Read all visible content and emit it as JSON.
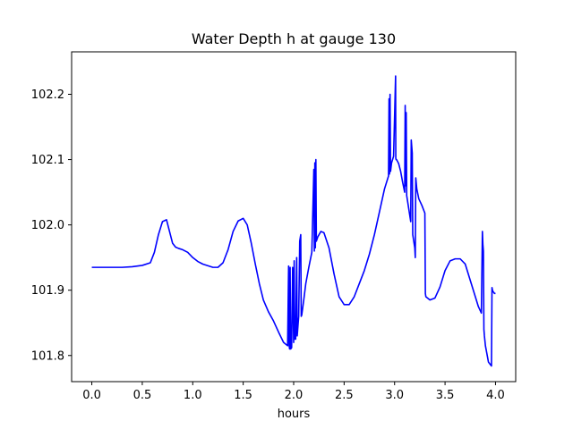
{
  "chart_data": {
    "type": "line",
    "title": "Water Depth h at gauge 130",
    "xlabel": "hours",
    "ylabel": "",
    "xlim": [
      -0.2,
      4.2
    ],
    "ylim": [
      101.76,
      102.265
    ],
    "xticks": [
      0.0,
      0.5,
      1.0,
      1.5,
      2.0,
      2.5,
      3.0,
      3.5,
      4.0
    ],
    "xtick_labels": [
      "0.0",
      "0.5",
      "1.0",
      "1.5",
      "2.0",
      "2.5",
      "3.0",
      "3.5",
      "4.0"
    ],
    "yticks": [
      101.8,
      101.9,
      102.0,
      102.1,
      102.2
    ],
    "ytick_labels": [
      "101.8",
      "101.9",
      "102.0",
      "102.1",
      "102.2"
    ],
    "grid": false,
    "color": "#0000ff",
    "series": [
      {
        "x": [
          0.0,
          0.1,
          0.2,
          0.3,
          0.4,
          0.5,
          0.58,
          0.62,
          0.66,
          0.7,
          0.74,
          0.77,
          0.8,
          0.83,
          0.86,
          0.9,
          0.95,
          1.0,
          1.05,
          1.1,
          1.2,
          1.25,
          1.3,
          1.35,
          1.4,
          1.45,
          1.5,
          1.54,
          1.58,
          1.62,
          1.66,
          1.7,
          1.75,
          1.8,
          1.85,
          1.9,
          1.94,
          1.95,
          1.955,
          1.96,
          1.965,
          1.97,
          1.98,
          1.99,
          2.0,
          2.005,
          2.01,
          2.02,
          2.03,
          2.035,
          2.04,
          2.05,
          2.06,
          2.07,
          2.075,
          2.08,
          2.1,
          2.12,
          2.15,
          2.18,
          2.2,
          2.205,
          2.21,
          2.215,
          2.22,
          2.225,
          2.24,
          2.27,
          2.3,
          2.35,
          2.4,
          2.45,
          2.5,
          2.55,
          2.6,
          2.65,
          2.7,
          2.75,
          2.8,
          2.85,
          2.9,
          2.94,
          2.945,
          2.95,
          2.955,
          2.96,
          2.97,
          2.99,
          3.01,
          3.012,
          3.015,
          3.02,
          3.04,
          3.06,
          3.08,
          3.1,
          3.105,
          3.11,
          3.115,
          3.12,
          3.14,
          3.16,
          3.165,
          3.17,
          3.175,
          3.18,
          3.185,
          3.2,
          3.205,
          3.21,
          3.22,
          3.24,
          3.27,
          3.3,
          3.305,
          3.31,
          3.35,
          3.4,
          3.45,
          3.5,
          3.55,
          3.6,
          3.65,
          3.7,
          3.75,
          3.8,
          3.83,
          3.86,
          3.87,
          3.875,
          3.88,
          3.885,
          3.89,
          3.9,
          3.93,
          3.96,
          3.965,
          3.97,
          3.975,
          3.98,
          3.99,
          4.0
        ],
        "values": [
          101.935,
          101.935,
          101.935,
          101.935,
          101.936,
          101.938,
          101.942,
          101.958,
          101.985,
          102.005,
          102.008,
          101.99,
          101.972,
          101.966,
          101.964,
          101.962,
          101.958,
          101.95,
          101.944,
          101.94,
          101.935,
          101.935,
          101.942,
          101.962,
          101.99,
          102.006,
          102.01,
          102.0,
          101.972,
          101.94,
          101.91,
          101.885,
          101.867,
          101.853,
          101.836,
          101.82,
          101.815,
          101.937,
          101.815,
          101.81,
          101.935,
          101.81,
          101.812,
          101.935,
          101.82,
          101.945,
          101.825,
          101.825,
          101.95,
          101.83,
          101.84,
          101.86,
          101.975,
          101.985,
          101.86,
          101.862,
          101.885,
          101.91,
          101.935,
          101.958,
          102.085,
          101.96,
          102.095,
          101.965,
          102.1,
          101.975,
          101.982,
          101.99,
          101.988,
          101.965,
          101.925,
          101.89,
          101.878,
          101.878,
          101.89,
          101.91,
          101.93,
          101.955,
          101.985,
          102.02,
          102.055,
          102.075,
          102.193,
          102.078,
          102.2,
          102.082,
          102.095,
          102.105,
          102.228,
          102.102,
          102.1,
          102.1,
          102.094,
          102.082,
          102.065,
          102.05,
          102.183,
          102.06,
          102.172,
          102.045,
          102.025,
          102.005,
          102.13,
          102.12,
          102.11,
          101.985,
          101.98,
          101.965,
          101.95,
          102.072,
          102.055,
          102.04,
          102.03,
          102.018,
          101.895,
          101.89,
          101.885,
          101.888,
          101.905,
          101.93,
          101.945,
          101.948,
          101.948,
          101.94,
          101.915,
          101.89,
          101.875,
          101.865,
          101.99,
          101.97,
          101.96,
          101.84,
          101.83,
          101.815,
          101.79,
          101.784,
          101.904,
          101.9,
          101.898,
          101.897,
          101.895,
          101.895
        ]
      }
    ]
  }
}
